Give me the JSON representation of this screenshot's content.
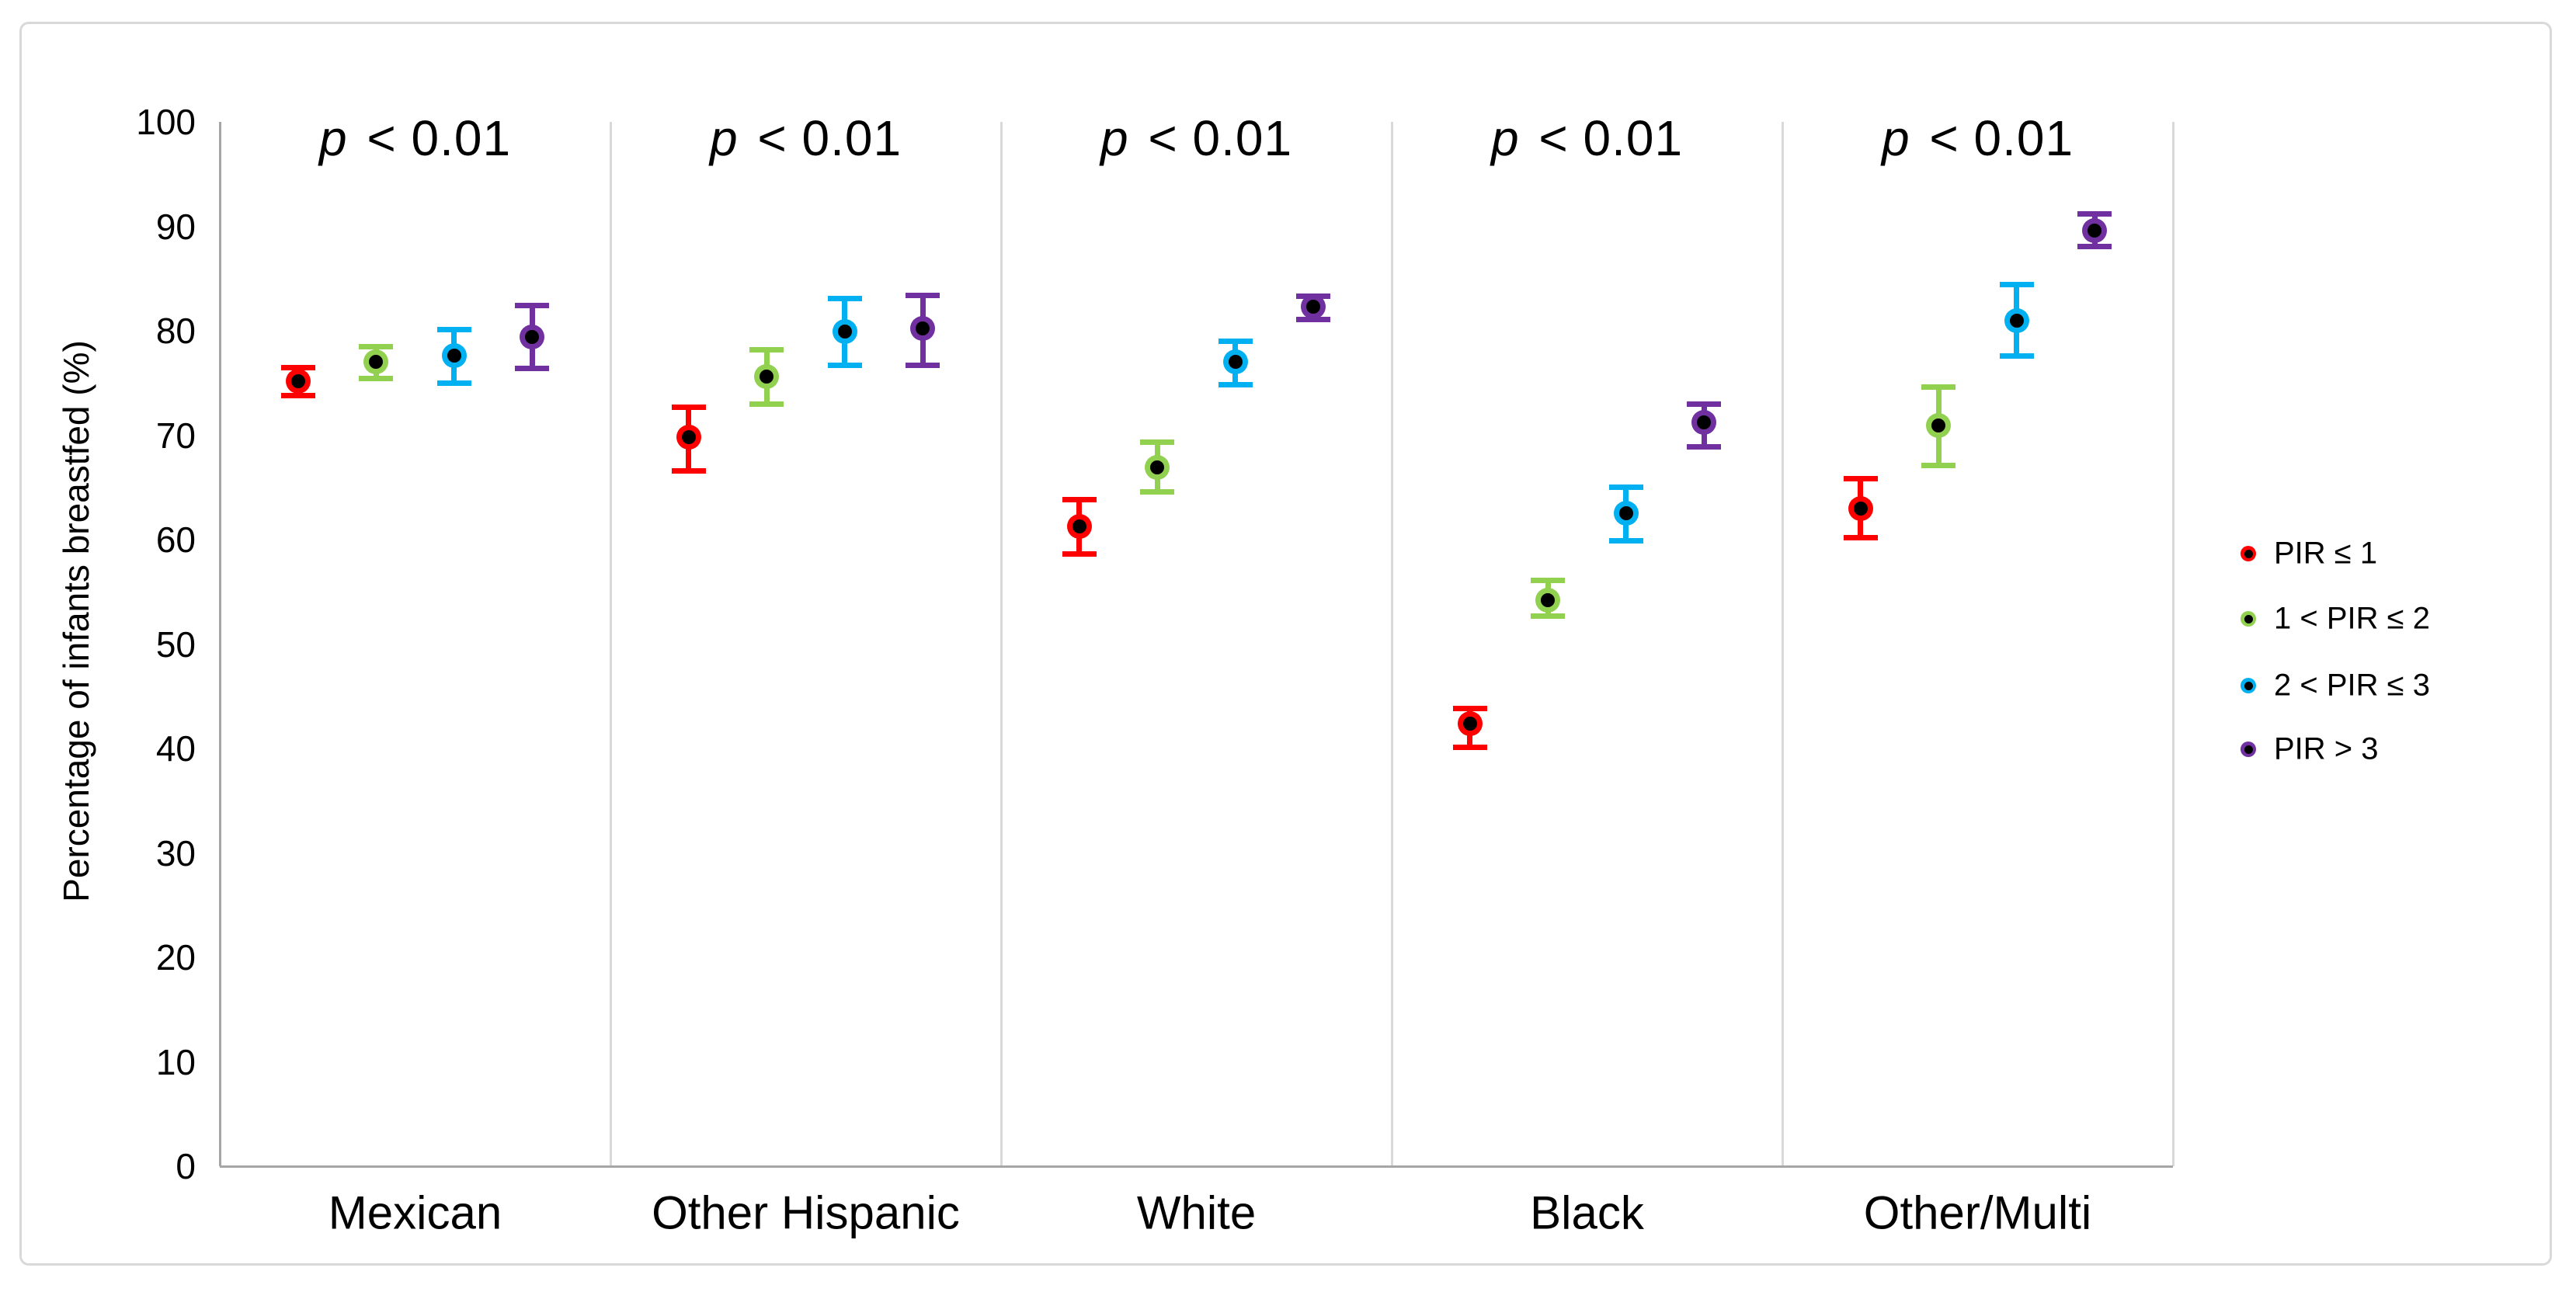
{
  "figure": {
    "background_color": "#ffffff",
    "border_color": "#d9d9d9",
    "axis_line_color": "#a6a6a6",
    "panel_divider_color": "#d9d9d9",
    "text_color": "#000000"
  },
  "chart_data": {
    "type": "scatter",
    "subtype": "point-estimates-with-error-bars",
    "title": "",
    "xlabel": "",
    "ylabel": "Percentage of infants breastfed (%)",
    "ylim": [
      0,
      100
    ],
    "yticks": [
      0,
      10,
      20,
      30,
      40,
      50,
      60,
      70,
      80,
      90,
      100
    ],
    "grid": false,
    "legend_position": "right-middle",
    "marker_style": "colored-circle-with-black-center-dot",
    "categories": [
      "Mexican",
      "Other Hispanic",
      "White",
      "Black",
      "Other/Multi"
    ],
    "group_annotations": [
      "p < 0.01",
      "p < 0.01",
      "p < 0.01",
      "p < 0.01",
      "p < 0.01"
    ],
    "series": [
      {
        "name": "PIR ≤ 1",
        "color": "#FF0000",
        "values": [
          75.2,
          69.8,
          61.3,
          42.4,
          63.0
        ],
        "ci_low": [
          73.8,
          66.6,
          58.6,
          40.1,
          60.2
        ],
        "ci_high": [
          76.5,
          72.7,
          63.8,
          43.8,
          65.8
        ]
      },
      {
        "name": "1 < PIR ≤ 2",
        "color": "#92D050",
        "values": [
          77.0,
          75.6,
          66.9,
          54.2,
          70.9
        ],
        "ci_low": [
          75.4,
          73.0,
          64.6,
          52.7,
          67.1
        ],
        "ci_high": [
          78.5,
          78.2,
          69.3,
          56.1,
          74.6
        ]
      },
      {
        "name": "2 < PIR ≤ 3",
        "color": "#00B0F0",
        "values": [
          77.6,
          79.9,
          77.0,
          62.5,
          81.0
        ],
        "ci_low": [
          75.0,
          76.7,
          74.8,
          59.9,
          77.6
        ],
        "ci_high": [
          80.1,
          83.1,
          79.0,
          65.0,
          84.4
        ]
      },
      {
        "name": "PIR > 3",
        "color": "#7030A0",
        "values": [
          79.4,
          80.2,
          82.3,
          71.2,
          89.6
        ],
        "ci_low": [
          76.4,
          76.7,
          81.1,
          68.9,
          88.1
        ],
        "ci_high": [
          82.4,
          83.4,
          83.3,
          73.0,
          91.2
        ]
      }
    ]
  }
}
